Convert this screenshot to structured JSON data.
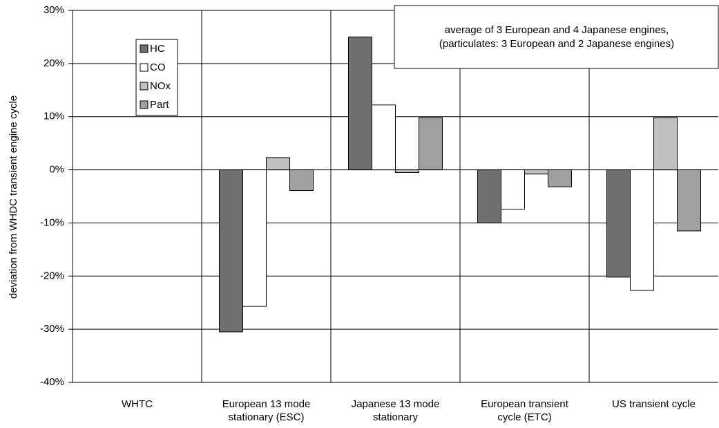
{
  "chart_data": {
    "type": "bar",
    "y_label": "deviation from WHDC transient engine cycle",
    "annotation": [
      "average of 3 European and 4 Japanese engines,",
      "(particulates: 3 European and 2 Japanese engines)"
    ],
    "categories": [
      "WHTC",
      "European 13 mode stationary (ESC)",
      "Japanese 13 mode stationary",
      "European transient cycle (ETC)",
      "US transient cycle"
    ],
    "series": [
      {
        "name": "HC",
        "color": "#707070",
        "values": [
          0,
          -30.5,
          25,
          -10,
          -20.2
        ]
      },
      {
        "name": "CO",
        "color": "#ffffff",
        "values": [
          0,
          -25.7,
          12.2,
          -7.4,
          -22.7
        ]
      },
      {
        "name": "NOx",
        "color": "#c0c0c0",
        "values": [
          0,
          2.3,
          -0.5,
          -0.8,
          9.8
        ]
      },
      {
        "name": "Part",
        "color": "#a0a0a0",
        "values": [
          0,
          -3.9,
          9.8,
          -3.2,
          -11.5
        ]
      }
    ],
    "ylim": [
      -40,
      30
    ],
    "yticks": [
      {
        "value": -40,
        "label": "-40%"
      },
      {
        "value": -30,
        "label": "-30%"
      },
      {
        "value": -20,
        "label": "-20%"
      },
      {
        "value": -10,
        "label": "-10%"
      },
      {
        "value": 0,
        "label": "0%"
      },
      {
        "value": 10,
        "label": "10%"
      },
      {
        "value": 20,
        "label": "20%"
      },
      {
        "value": 30,
        "label": "30%"
      }
    ],
    "grid": true
  }
}
